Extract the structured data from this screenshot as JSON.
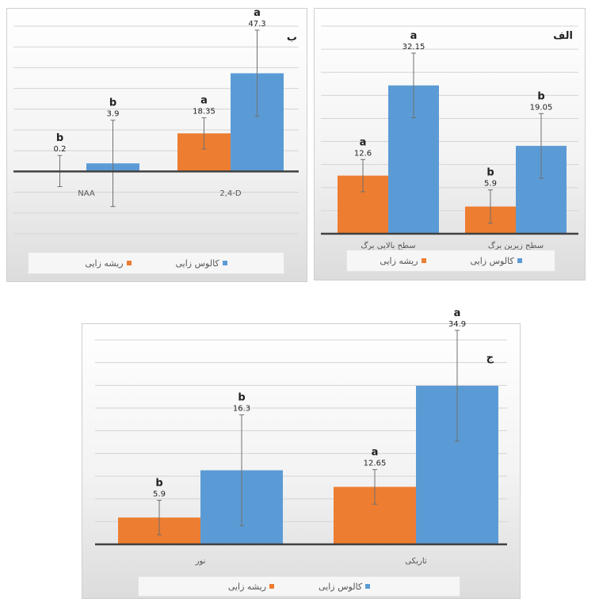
{
  "colors": {
    "rooting": "#ed7d31",
    "callus": "#5b9bd5",
    "axis": "#404040",
    "grid": "#d4d4d4",
    "errbar": "#707070"
  },
  "legend": {
    "rooting": "ریشه زایی",
    "callus": "کالوس زایی"
  },
  "chart_data": [
    {
      "id": "panel-alef",
      "type": "bar",
      "title": "الف",
      "categories": [
        "سطح بالایی برگ",
        "سطح زیرین برگ"
      ],
      "series": [
        {
          "name": "ریشه زایی",
          "values": [
            12.6,
            5.9
          ],
          "letters": [
            "a",
            "b"
          ],
          "error": [
            3.5,
            3.6
          ]
        },
        {
          "name": "کالوس زایی",
          "values": [
            32.15,
            19.05
          ],
          "letters": [
            "a",
            "b"
          ],
          "error": [
            7.0,
            7.0
          ]
        }
      ],
      "ylim": [
        0,
        45
      ],
      "grid": true,
      "legend_position": "bottom"
    },
    {
      "id": "panel-be",
      "type": "bar",
      "title": "ب",
      "categories": [
        "NAA",
        "2,4-D"
      ],
      "series": [
        {
          "name": "ریشه زایی",
          "values": [
            0.2,
            18.35
          ],
          "letters": [
            "b",
            "a"
          ],
          "error": [
            7.5,
            7.5
          ]
        },
        {
          "name": "کالوس زایی",
          "values": [
            3.9,
            47.3
          ],
          "letters": [
            "b",
            "a"
          ],
          "error": [
            20.8,
            20.8
          ]
        }
      ],
      "ylim": [
        -30,
        70
      ],
      "grid": true,
      "legend_position": "bottom"
    },
    {
      "id": "panel-jim",
      "type": "bar",
      "title": "ج",
      "categories": [
        "نور",
        "تاریکی"
      ],
      "series": [
        {
          "name": "ریشه زایی",
          "values": [
            5.9,
            12.65
          ],
          "letters": [
            "b",
            "a"
          ],
          "error": [
            3.8,
            3.8
          ]
        },
        {
          "name": "کالوس زایی",
          "values": [
            16.3,
            34.9
          ],
          "letters": [
            "b",
            "a"
          ],
          "error": [
            12.2,
            12.2
          ]
        }
      ],
      "ylim": [
        0,
        45
      ],
      "grid": true,
      "legend_position": "bottom"
    }
  ]
}
